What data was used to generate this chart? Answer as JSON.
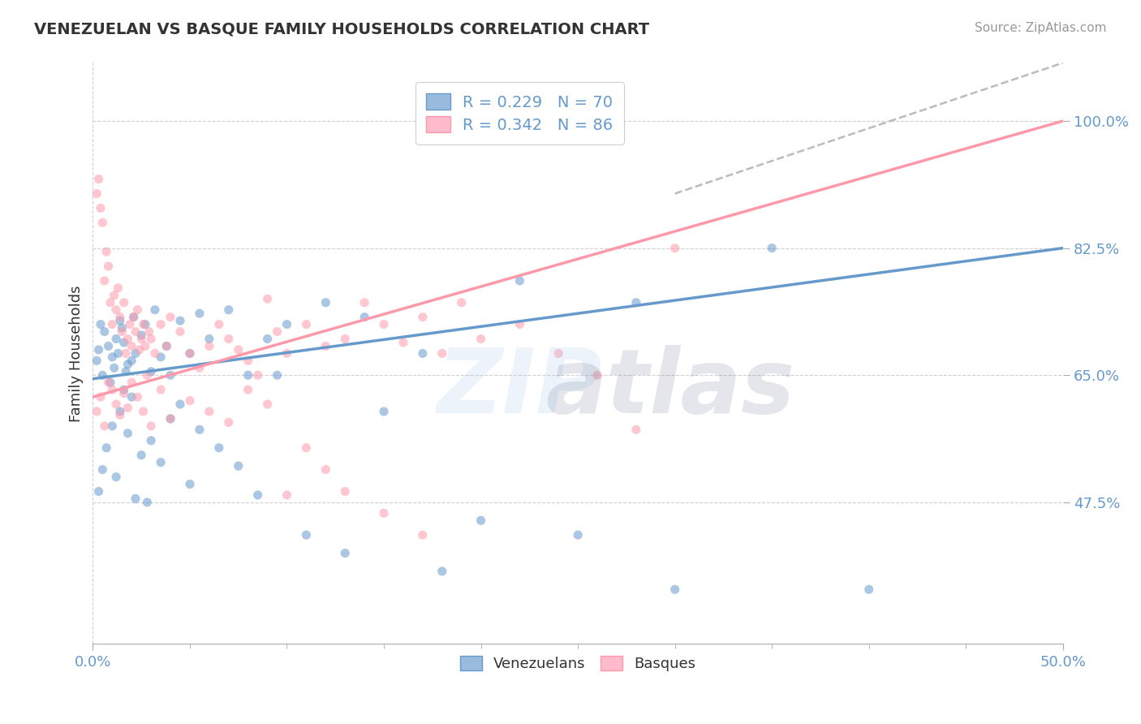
{
  "title": "VENEZUELAN VS BASQUE FAMILY HOUSEHOLDS CORRELATION CHART",
  "source": "Source: ZipAtlas.com",
  "ylabel_label": "Family Households",
  "legend_label1": "Venezuelans",
  "legend_label2": "Basques",
  "R1": 0.229,
  "N1": 70,
  "R2": 0.342,
  "N2": 86,
  "blue_color": "#6699CC",
  "pink_color": "#FF99AA",
  "blue_fill": "#99BBDD",
  "pink_fill": "#FFBBCC",
  "blue_trend": [
    0.0,
    50.0,
    64.5,
    82.5
  ],
  "pink_trend": [
    0.0,
    50.0,
    62.0,
    100.0
  ],
  "dash_trend": [
    30.0,
    50.0,
    90.0,
    108.0
  ],
  "x_min": 0.0,
  "x_max": 50.0,
  "y_min": 28.0,
  "y_max": 108.0,
  "ylabel_ticks": [
    47.5,
    65.0,
    82.5,
    100.0
  ],
  "blue_scatter_x": [
    0.2,
    0.3,
    0.4,
    0.5,
    0.6,
    0.8,
    0.9,
    1.0,
    1.1,
    1.2,
    1.3,
    1.4,
    1.5,
    1.6,
    1.7,
    1.8,
    2.0,
    2.1,
    2.2,
    2.5,
    2.7,
    3.0,
    3.2,
    3.5,
    3.8,
    4.0,
    4.5,
    5.0,
    5.5,
    6.0,
    7.0,
    8.0,
    9.0,
    10.0,
    12.0,
    14.0,
    17.0,
    22.0,
    28.0,
    35.0,
    0.3,
    0.5,
    0.7,
    1.0,
    1.2,
    1.4,
    1.6,
    1.8,
    2.0,
    2.2,
    2.5,
    2.8,
    3.0,
    3.5,
    4.0,
    4.5,
    5.0,
    5.5,
    6.5,
    7.5,
    8.5,
    9.5,
    11.0,
    13.0,
    15.0,
    18.0,
    20.0,
    25.0,
    30.0,
    40.0
  ],
  "blue_scatter_y": [
    67.0,
    68.5,
    72.0,
    65.0,
    71.0,
    69.0,
    64.0,
    67.5,
    66.0,
    70.0,
    68.0,
    72.5,
    71.5,
    69.5,
    65.5,
    66.5,
    67.0,
    73.0,
    68.0,
    70.5,
    72.0,
    65.5,
    74.0,
    67.5,
    69.0,
    65.0,
    72.5,
    68.0,
    73.5,
    70.0,
    74.0,
    65.0,
    70.0,
    72.0,
    75.0,
    73.0,
    68.0,
    78.0,
    75.0,
    82.5,
    49.0,
    52.0,
    55.0,
    58.0,
    51.0,
    60.0,
    63.0,
    57.0,
    62.0,
    48.0,
    54.0,
    47.5,
    56.0,
    53.0,
    59.0,
    61.0,
    50.0,
    57.5,
    55.0,
    52.5,
    48.5,
    65.0,
    43.0,
    40.5,
    60.0,
    38.0,
    45.0,
    43.0,
    35.5,
    35.5
  ],
  "pink_scatter_x": [
    0.2,
    0.3,
    0.4,
    0.5,
    0.6,
    0.7,
    0.8,
    0.9,
    1.0,
    1.1,
    1.2,
    1.3,
    1.4,
    1.5,
    1.6,
    1.7,
    1.8,
    1.9,
    2.0,
    2.1,
    2.2,
    2.3,
    2.4,
    2.5,
    2.6,
    2.7,
    2.8,
    2.9,
    3.0,
    3.2,
    3.5,
    3.8,
    4.0,
    4.5,
    5.0,
    5.5,
    6.0,
    6.5,
    7.0,
    7.5,
    8.0,
    8.5,
    9.0,
    9.5,
    10.0,
    11.0,
    12.0,
    13.0,
    14.0,
    15.0,
    16.0,
    17.0,
    18.0,
    19.0,
    20.0,
    22.0,
    24.0,
    26.0,
    28.0,
    30.0,
    0.2,
    0.4,
    0.6,
    0.8,
    1.0,
    1.2,
    1.4,
    1.6,
    1.8,
    2.0,
    2.3,
    2.6,
    3.0,
    3.5,
    4.0,
    5.0,
    6.0,
    7.0,
    8.0,
    9.0,
    10.0,
    11.0,
    12.0,
    13.0,
    15.0,
    17.0
  ],
  "pink_scatter_y": [
    90.0,
    92.0,
    88.0,
    86.0,
    78.0,
    82.0,
    80.0,
    75.0,
    72.0,
    76.0,
    74.0,
    77.0,
    73.0,
    71.0,
    75.0,
    68.0,
    70.0,
    72.0,
    69.0,
    73.0,
    71.0,
    74.0,
    68.5,
    70.0,
    72.0,
    69.0,
    65.0,
    71.0,
    70.0,
    68.0,
    72.0,
    69.0,
    73.0,
    71.0,
    68.0,
    66.0,
    69.0,
    72.0,
    70.0,
    68.5,
    67.0,
    65.0,
    75.5,
    71.0,
    68.0,
    72.0,
    69.0,
    70.0,
    75.0,
    72.0,
    69.5,
    73.0,
    68.0,
    75.0,
    70.0,
    72.0,
    68.0,
    65.0,
    57.5,
    82.5,
    60.0,
    62.0,
    58.0,
    64.0,
    63.0,
    61.0,
    59.5,
    62.5,
    60.5,
    64.0,
    62.0,
    60.0,
    58.0,
    63.0,
    59.0,
    61.5,
    60.0,
    58.5,
    63.0,
    61.0,
    48.5,
    55.0,
    52.0,
    49.0,
    46.0,
    43.0
  ]
}
